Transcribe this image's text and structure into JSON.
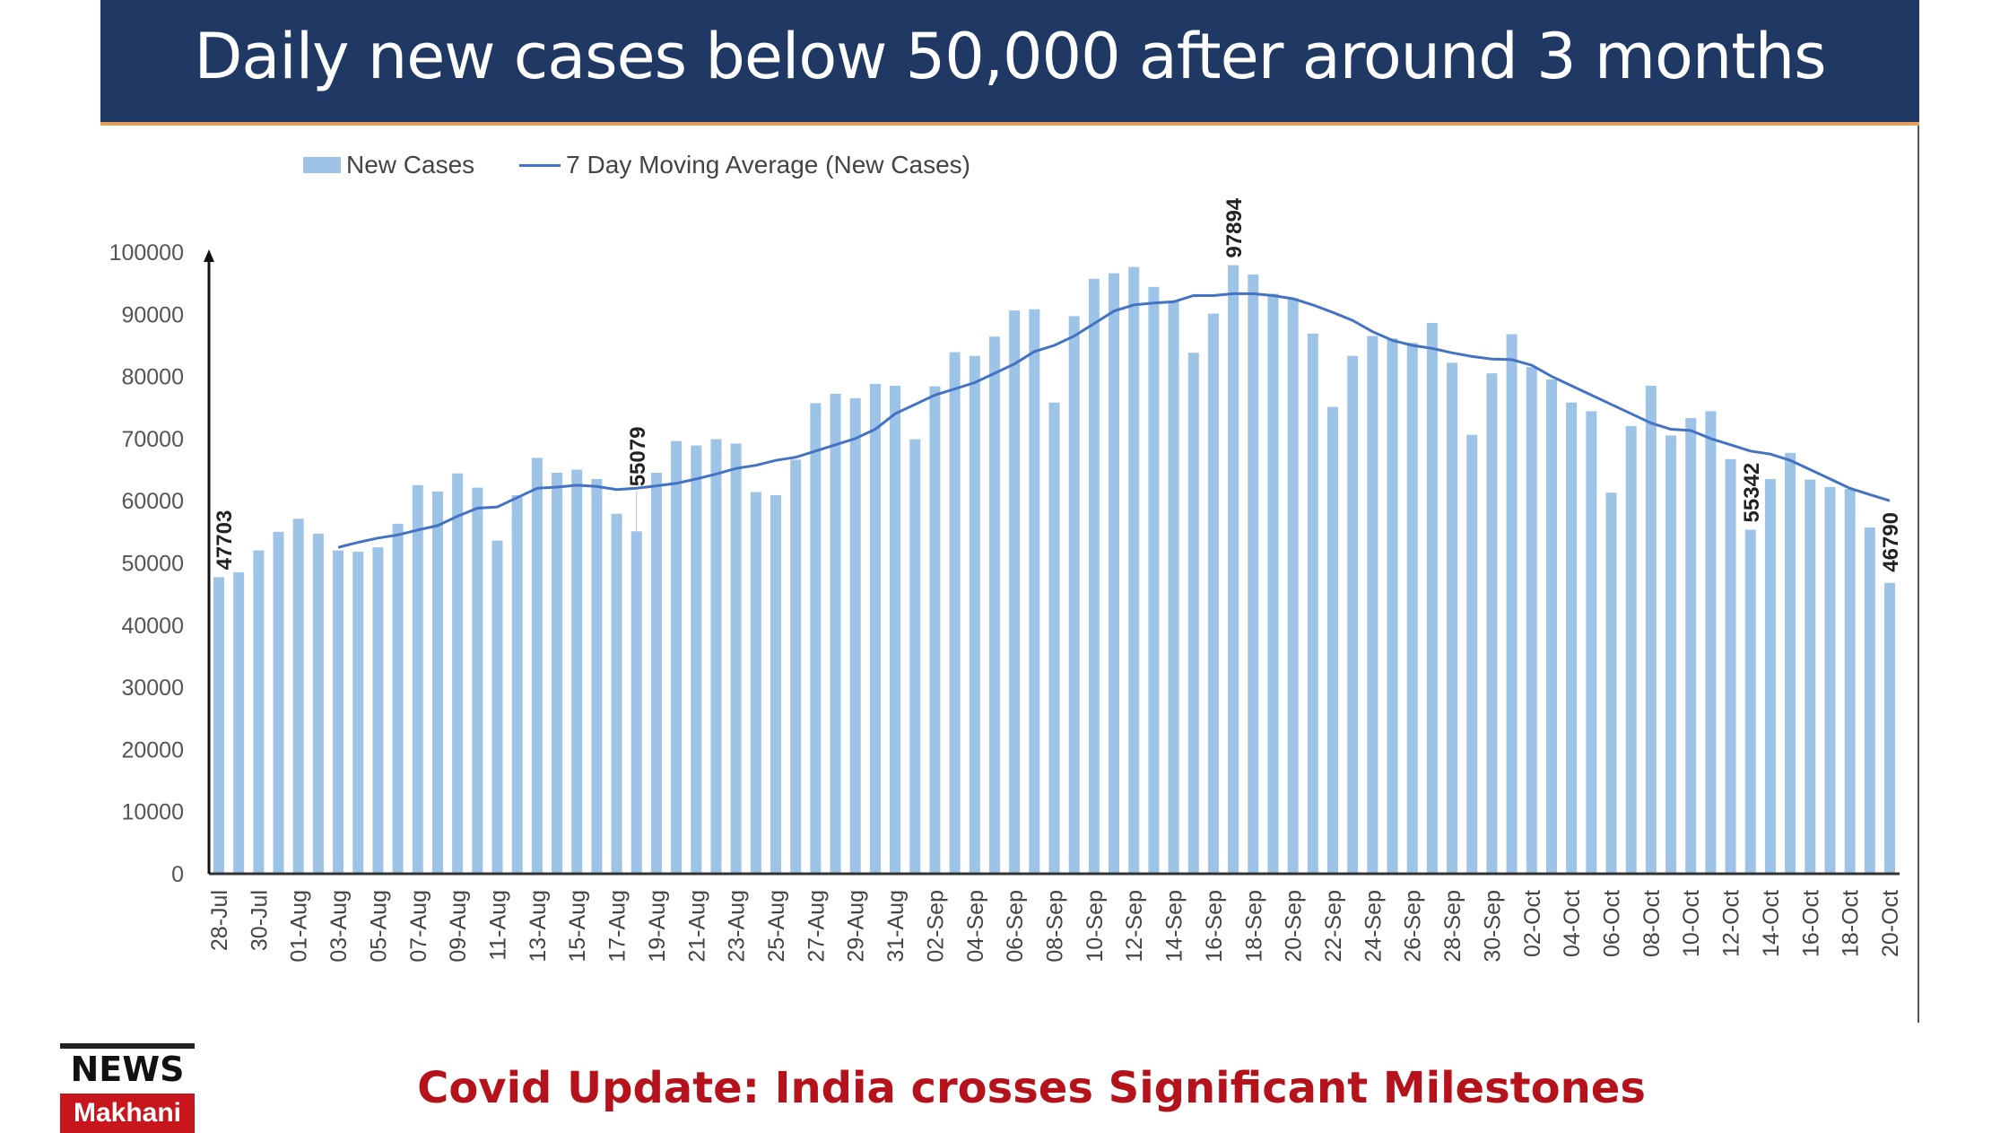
{
  "header": {
    "title": "Daily new cases below 50,000 after around 3 months"
  },
  "footer": {
    "caption": "Covid Update: India crosses Significant Milestones",
    "logo_top": "NEWS",
    "logo_bottom": "Makhani"
  },
  "colors": {
    "title_bg": "#1f3864",
    "bar": "#9dc3e6",
    "line": "#4472c4",
    "caption": "#b5121b"
  },
  "chart_data": {
    "type": "bar",
    "title": "Daily new cases below 50,000 after around 3 months",
    "xlabel": "",
    "ylabel": "",
    "ylim": [
      0,
      100000
    ],
    "yticks": [
      "0",
      "10000",
      "20000",
      "30000",
      "40000",
      "50000",
      "60000",
      "70000",
      "80000",
      "90000",
      "100000"
    ],
    "legend": "top-left",
    "grid": false,
    "categories": [
      "28-Jul",
      "29-Jul",
      "30-Jul",
      "31-Jul",
      "01-Aug",
      "02-Aug",
      "03-Aug",
      "04-Aug",
      "05-Aug",
      "06-Aug",
      "07-Aug",
      "08-Aug",
      "09-Aug",
      "10-Aug",
      "11-Aug",
      "12-Aug",
      "13-Aug",
      "14-Aug",
      "15-Aug",
      "16-Aug",
      "17-Aug",
      "18-Aug",
      "19-Aug",
      "20-Aug",
      "21-Aug",
      "22-Aug",
      "23-Aug",
      "24-Aug",
      "25-Aug",
      "26-Aug",
      "27-Aug",
      "28-Aug",
      "29-Aug",
      "30-Aug",
      "31-Aug",
      "01-Sep",
      "02-Sep",
      "03-Sep",
      "04-Sep",
      "05-Sep",
      "06-Sep",
      "07-Sep",
      "08-Sep",
      "09-Sep",
      "10-Sep",
      "11-Sep",
      "12-Sep",
      "13-Sep",
      "14-Sep",
      "15-Sep",
      "16-Sep",
      "17-Sep",
      "18-Sep",
      "19-Sep",
      "20-Sep",
      "21-Sep",
      "22-Sep",
      "23-Sep",
      "24-Sep",
      "25-Sep",
      "26-Sep",
      "27-Sep",
      "28-Sep",
      "29-Sep",
      "30-Sep",
      "01-Oct",
      "02-Oct",
      "03-Oct",
      "04-Oct",
      "05-Oct",
      "06-Oct",
      "07-Oct",
      "08-Oct",
      "09-Oct",
      "10-Oct",
      "11-Oct",
      "12-Oct",
      "13-Oct",
      "14-Oct",
      "15-Oct",
      "16-Oct",
      "17-Oct",
      "18-Oct",
      "19-Oct",
      "20-Oct"
    ],
    "series": [
      {
        "name": "New Cases",
        "type": "bar",
        "values": [
          47703,
          48500,
          52000,
          55000,
          57100,
          54700,
          52000,
          51800,
          52500,
          56300,
          62500,
          61500,
          64400,
          62100,
          53600,
          60900,
          66900,
          64500,
          65000,
          63500,
          57900,
          55079,
          64500,
          69600,
          68900,
          69900,
          69200,
          61400,
          60900,
          66600,
          75700,
          77200,
          76500,
          78800,
          78500,
          69900,
          78400,
          83900,
          83300,
          86400,
          90600,
          90800,
          75800,
          89700,
          95700,
          96600,
          97600,
          94400,
          92100,
          83800,
          90100,
          97894,
          96400,
          93300,
          92600,
          86900,
          75100,
          83300,
          86500,
          86100,
          85400,
          88600,
          82200,
          70600,
          80500,
          86800,
          81500,
          79500,
          75800,
          74400,
          61300,
          72000,
          78500,
          70500,
          73300,
          74400,
          66700,
          55342,
          63500,
          67700,
          63400,
          62200,
          61900,
          55700,
          46790
        ]
      },
      {
        "name": "7 Day Moving Average (New Cases)",
        "type": "line",
        "values": [
          null,
          null,
          null,
          null,
          null,
          null,
          52500,
          53300,
          54000,
          54500,
          55300,
          56000,
          57500,
          58800,
          59000,
          60500,
          62000,
          62200,
          62500,
          62300,
          61800,
          62000,
          62400,
          62800,
          63500,
          64300,
          65200,
          65700,
          66500,
          67000,
          68000,
          69000,
          70000,
          71500,
          74000,
          75500,
          77000,
          78000,
          79000,
          80500,
          82000,
          84000,
          85000,
          86500,
          88500,
          90500,
          91500,
          91800,
          92000,
          93000,
          93000,
          93300,
          93300,
          93000,
          92500,
          91500,
          90300,
          89000,
          87200,
          85800,
          85000,
          84500,
          83800,
          83200,
          82800,
          82700,
          81800,
          80000,
          78500,
          77000,
          75500,
          74000,
          72500,
          71500,
          71300,
          70000,
          69000,
          68000,
          67500,
          66500,
          65000,
          63500,
          62000,
          61000,
          60000
        ]
      }
    ],
    "data_labels": [
      {
        "category": "28-Jul",
        "text": "47703"
      },
      {
        "category": "18-Aug",
        "text": "55079"
      },
      {
        "category": "17-Sep",
        "text": "97894"
      },
      {
        "category": "13-Oct",
        "text": "55342"
      },
      {
        "category": "20-Oct",
        "text": "46790"
      }
    ]
  }
}
